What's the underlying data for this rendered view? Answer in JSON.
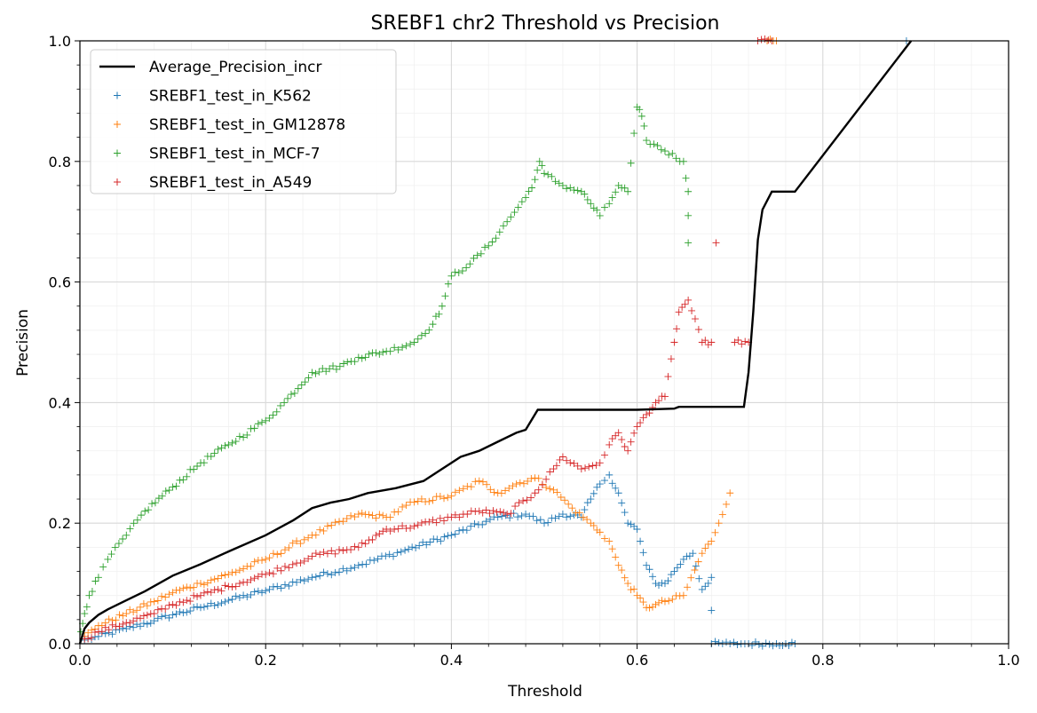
{
  "chart_data": {
    "type": "scatter",
    "title": "SREBF1 chr2 Threshold vs Precision",
    "xlabel": "Threshold",
    "ylabel": "Precision",
    "xlim": [
      0.0,
      1.0
    ],
    "ylim": [
      0.0,
      1.0
    ],
    "xticks": [
      "0.0",
      "0.2",
      "0.4",
      "0.6",
      "0.8",
      "1.0"
    ],
    "yticks": [
      "0.0",
      "0.2",
      "0.4",
      "0.6",
      "0.8",
      "1.0"
    ],
    "grid": "major and minor",
    "legend_position": "upper-left",
    "line_series": {
      "name": "Average_Precision_incr",
      "color": "#000000",
      "points": [
        [
          0.0,
          0.0
        ],
        [
          0.005,
          0.025
        ],
        [
          0.01,
          0.035
        ],
        [
          0.02,
          0.048
        ],
        [
          0.03,
          0.057
        ],
        [
          0.05,
          0.072
        ],
        [
          0.07,
          0.087
        ],
        [
          0.1,
          0.113
        ],
        [
          0.13,
          0.132
        ],
        [
          0.16,
          0.153
        ],
        [
          0.2,
          0.18
        ],
        [
          0.23,
          0.205
        ],
        [
          0.25,
          0.225
        ],
        [
          0.27,
          0.234
        ],
        [
          0.29,
          0.24
        ],
        [
          0.31,
          0.25
        ],
        [
          0.34,
          0.258
        ],
        [
          0.37,
          0.27
        ],
        [
          0.39,
          0.29
        ],
        [
          0.41,
          0.31
        ],
        [
          0.43,
          0.32
        ],
        [
          0.45,
          0.335
        ],
        [
          0.47,
          0.35
        ],
        [
          0.48,
          0.355
        ],
        [
          0.493,
          0.388
        ],
        [
          0.6,
          0.388
        ],
        [
          0.64,
          0.39
        ],
        [
          0.645,
          0.393
        ],
        [
          0.715,
          0.393
        ],
        [
          0.72,
          0.45
        ],
        [
          0.725,
          0.55
        ],
        [
          0.73,
          0.67
        ],
        [
          0.735,
          0.72
        ],
        [
          0.745,
          0.75
        ],
        [
          0.77,
          0.75
        ],
        [
          0.895,
          1.0
        ]
      ]
    },
    "series": [
      {
        "name": "SREBF1_test_in_K562",
        "color": "#1f77b4",
        "points": [
          [
            0.005,
            0.006
          ],
          [
            0.02,
            0.012
          ],
          [
            0.05,
            0.025
          ],
          [
            0.08,
            0.038
          ],
          [
            0.1,
            0.048
          ],
          [
            0.13,
            0.06
          ],
          [
            0.16,
            0.072
          ],
          [
            0.2,
            0.088
          ],
          [
            0.25,
            0.11
          ],
          [
            0.3,
            0.13
          ],
          [
            0.35,
            0.155
          ],
          [
            0.4,
            0.18
          ],
          [
            0.45,
            0.21
          ],
          [
            0.48,
            0.215
          ],
          [
            0.5,
            0.2
          ],
          [
            0.52,
            0.215
          ],
          [
            0.54,
            0.21
          ],
          [
            0.55,
            0.24
          ],
          [
            0.56,
            0.265
          ],
          [
            0.57,
            0.28
          ],
          [
            0.58,
            0.25
          ],
          [
            0.59,
            0.2
          ],
          [
            0.6,
            0.19
          ],
          [
            0.61,
            0.13
          ],
          [
            0.62,
            0.1
          ],
          [
            0.63,
            0.1
          ],
          [
            0.64,
            0.12
          ],
          [
            0.65,
            0.14
          ],
          [
            0.66,
            0.15
          ],
          [
            0.67,
            0.09
          ],
          [
            0.68,
            0.11
          ],
          [
            0.68,
            0.0
          ],
          [
            0.7,
            0.0
          ],
          [
            0.72,
            0.0
          ],
          [
            0.75,
            0.0
          ],
          [
            0.76,
            0.0
          ],
          [
            0.77,
            0.0
          ],
          [
            0.89,
            1.0
          ]
        ]
      },
      {
        "name": "SREBF1_test_in_GM12878",
        "color": "#ff7f0e",
        "points": [
          [
            0.005,
            0.012
          ],
          [
            0.02,
            0.03
          ],
          [
            0.05,
            0.05
          ],
          [
            0.08,
            0.07
          ],
          [
            0.1,
            0.085
          ],
          [
            0.13,
            0.1
          ],
          [
            0.16,
            0.115
          ],
          [
            0.2,
            0.14
          ],
          [
            0.25,
            0.18
          ],
          [
            0.3,
            0.215
          ],
          [
            0.33,
            0.21
          ],
          [
            0.36,
            0.235
          ],
          [
            0.4,
            0.245
          ],
          [
            0.43,
            0.27
          ],
          [
            0.45,
            0.25
          ],
          [
            0.47,
            0.265
          ],
          [
            0.49,
            0.275
          ],
          [
            0.51,
            0.255
          ],
          [
            0.53,
            0.225
          ],
          [
            0.55,
            0.2
          ],
          [
            0.56,
            0.185
          ],
          [
            0.57,
            0.17
          ],
          [
            0.58,
            0.13
          ],
          [
            0.59,
            0.1
          ],
          [
            0.6,
            0.08
          ],
          [
            0.61,
            0.06
          ],
          [
            0.62,
            0.065
          ],
          [
            0.63,
            0.07
          ],
          [
            0.65,
            0.08
          ],
          [
            0.67,
            0.15
          ],
          [
            0.68,
            0.17
          ],
          [
            0.7,
            0.25
          ],
          [
            0.74,
            1.0
          ],
          [
            0.75,
            1.0
          ]
        ]
      },
      {
        "name": "SREBF1_test_in_MCF-7",
        "color": "#2ca02c",
        "points": [
          [
            0.001,
            0.02
          ],
          [
            0.005,
            0.05
          ],
          [
            0.01,
            0.08
          ],
          [
            0.02,
            0.11
          ],
          [
            0.03,
            0.14
          ],
          [
            0.05,
            0.18
          ],
          [
            0.07,
            0.22
          ],
          [
            0.1,
            0.26
          ],
          [
            0.13,
            0.3
          ],
          [
            0.16,
            0.33
          ],
          [
            0.2,
            0.37
          ],
          [
            0.22,
            0.4
          ],
          [
            0.25,
            0.45
          ],
          [
            0.28,
            0.46
          ],
          [
            0.3,
            0.475
          ],
          [
            0.33,
            0.485
          ],
          [
            0.36,
            0.5
          ],
          [
            0.38,
            0.53
          ],
          [
            0.39,
            0.56
          ],
          [
            0.4,
            0.61
          ],
          [
            0.42,
            0.63
          ],
          [
            0.44,
            0.66
          ],
          [
            0.46,
            0.7
          ],
          [
            0.48,
            0.74
          ],
          [
            0.49,
            0.77
          ],
          [
            0.495,
            0.8
          ],
          [
            0.5,
            0.78
          ],
          [
            0.52,
            0.76
          ],
          [
            0.54,
            0.75
          ],
          [
            0.55,
            0.73
          ],
          [
            0.56,
            0.71
          ],
          [
            0.57,
            0.73
          ],
          [
            0.58,
            0.76
          ],
          [
            0.59,
            0.75
          ],
          [
            0.6,
            0.89
          ],
          [
            0.605,
            0.875
          ],
          [
            0.61,
            0.835
          ],
          [
            0.65,
            0.8
          ],
          [
            0.655,
            0.75
          ],
          [
            0.655,
            0.665
          ]
        ]
      },
      {
        "name": "SREBF1_test_in_A549",
        "color": "#d62728",
        "points": [
          [
            0.005,
            0.008
          ],
          [
            0.02,
            0.02
          ],
          [
            0.05,
            0.035
          ],
          [
            0.08,
            0.05
          ],
          [
            0.1,
            0.065
          ],
          [
            0.13,
            0.08
          ],
          [
            0.16,
            0.095
          ],
          [
            0.2,
            0.115
          ],
          [
            0.25,
            0.145
          ],
          [
            0.3,
            0.16
          ],
          [
            0.33,
            0.19
          ],
          [
            0.36,
            0.195
          ],
          [
            0.4,
            0.21
          ],
          [
            0.43,
            0.22
          ],
          [
            0.46,
            0.215
          ],
          [
            0.49,
            0.25
          ],
          [
            0.51,
            0.29
          ],
          [
            0.52,
            0.31
          ],
          [
            0.54,
            0.29
          ],
          [
            0.56,
            0.3
          ],
          [
            0.57,
            0.33
          ],
          [
            0.58,
            0.35
          ],
          [
            0.59,
            0.32
          ],
          [
            0.6,
            0.36
          ],
          [
            0.61,
            0.38
          ],
          [
            0.62,
            0.4
          ],
          [
            0.63,
            0.41
          ],
          [
            0.64,
            0.5
          ],
          [
            0.645,
            0.55
          ],
          [
            0.655,
            0.57
          ],
          [
            0.67,
            0.5
          ],
          [
            0.68,
            0.5
          ],
          [
            0.685,
            0.665
          ],
          [
            0.705,
            0.5
          ],
          [
            0.72,
            0.5
          ],
          [
            0.73,
            1.0
          ],
          [
            0.745,
            1.0
          ]
        ]
      }
    ]
  }
}
